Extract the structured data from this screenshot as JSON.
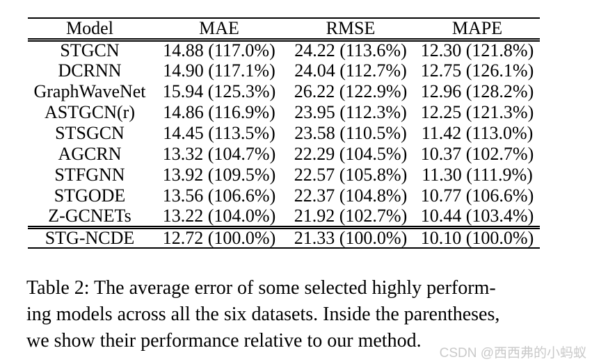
{
  "table": {
    "columns": [
      "Model",
      "MAE",
      "RMSE",
      "MAPE"
    ],
    "rows": [
      {
        "cells": [
          "STGCN",
          "14.88 (117.0%)",
          "24.22 (113.6%)",
          "12.30 (121.8%)"
        ],
        "bold": false
      },
      {
        "cells": [
          "DCRNN",
          "14.90 (117.1%)",
          "24.04 (112.7%)",
          "12.75 (126.1%)"
        ],
        "bold": false
      },
      {
        "cells": [
          "GraphWaveNet",
          "15.94 (125.3%)",
          "26.22 (122.9%)",
          "12.96 (128.2%)"
        ],
        "bold": false
      },
      {
        "cells": [
          "ASTGCN(r)",
          "14.86 (116.9%)",
          "23.95 (112.3%)",
          "12.25 (121.3%)"
        ],
        "bold": false
      },
      {
        "cells": [
          "STSGCN",
          "14.45 (113.5%)",
          "23.58 (110.5%)",
          "11.42 (113.0%)"
        ],
        "bold": false
      },
      {
        "cells": [
          "AGCRN",
          "13.32 (104.7%)",
          "22.29 (104.5%)",
          "10.37 (102.7%)"
        ],
        "bold": false
      },
      {
        "cells": [
          "STFGNN",
          "13.92 (109.5%)",
          "22.57 (105.8%)",
          "11.30 (111.9%)"
        ],
        "bold": false
      },
      {
        "cells": [
          "STGODE",
          "13.56 (106.6%)",
          "22.37 (104.8%)",
          "10.77 (106.6%)"
        ],
        "bold": false
      },
      {
        "cells": [
          "Z-GCNETs",
          "13.22 (104.0%)",
          "21.92 (102.7%)",
          "10.44 (103.4%)"
        ],
        "bold": false
      },
      {
        "cells": [
          "STG-NCDE",
          "12.72 (100.0%)",
          "21.33 (100.0%)",
          "10.10 (100.0%)"
        ],
        "bold": true
      }
    ]
  },
  "caption": {
    "lines": [
      "Table 2: The average error of some selected highly perform-",
      "ing models across all the six datasets. Inside the parentheses,",
      "we show their performance relative to our method."
    ]
  },
  "watermark": {
    "text": "CSDN @西西弗的小蚂蚁",
    "color": "#c9c9c9"
  },
  "colors": {
    "text": "#000000",
    "rule": "#000000",
    "background": "#ffffff"
  }
}
